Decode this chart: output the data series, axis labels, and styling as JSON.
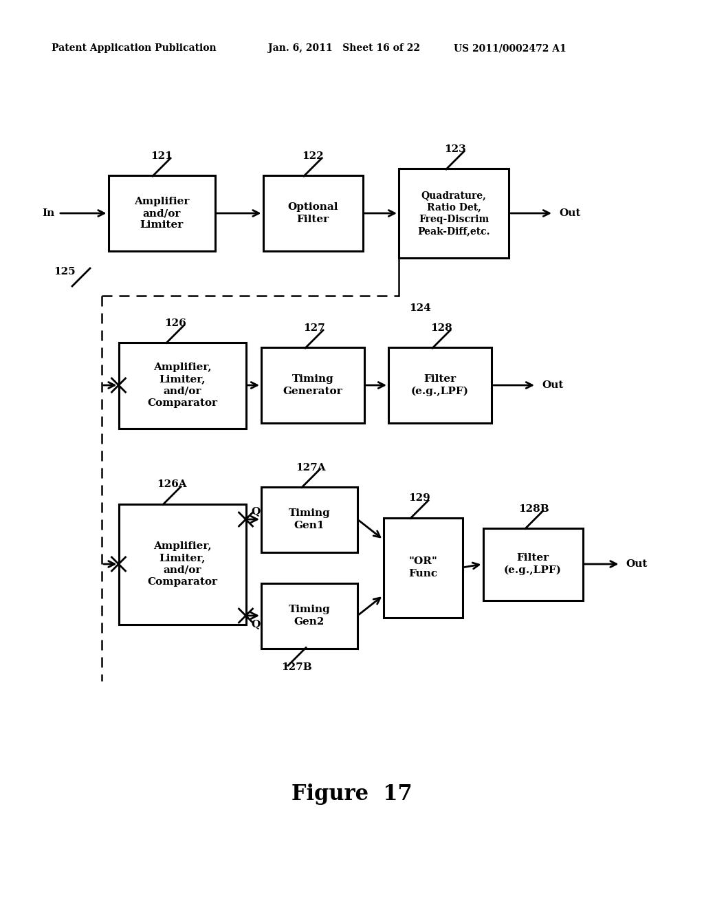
{
  "header_left": "Patent Application Publication",
  "header_mid": "Jan. 6, 2011   Sheet 16 of 22",
  "header_right": "US 2011/0002472 A1",
  "figure_label": "Figure  17",
  "bg_color": "#ffffff"
}
